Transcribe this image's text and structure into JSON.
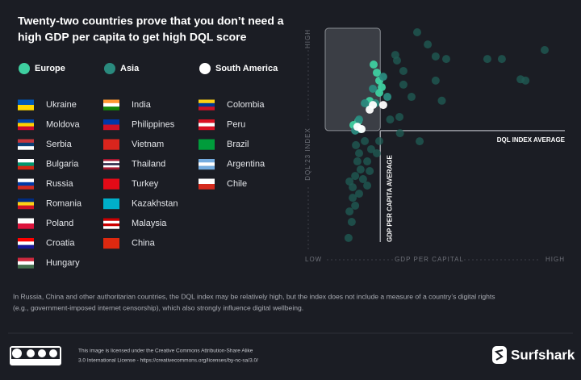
{
  "title": [
    "Twenty-two countries prove that you don’t need a",
    "high GDP per capita to get high DQL score"
  ],
  "chart_data": {
    "type": "scatter",
    "y_label": "DQL'23 INDEX",
    "y_low": "LOW",
    "y_high": "HIGH",
    "x_label": "GDP PER CAPITAL",
    "x_low": "LOW",
    "x_high": "HIGH",
    "x_ref_label": "GDP PER CAPITA AVERAGE",
    "y_ref_label": "DQL INDEX AVERAGE",
    "xlim": [
      0,
      100
    ],
    "ylim": [
      0,
      100
    ],
    "x_ref": 25,
    "y_ref": 54,
    "series": [
      {
        "color": "#1f5a52",
        "x": [
          40,
          31.1,
          31.8,
          44.3,
          47.5,
          51.8,
          68.5,
          74.4,
          91.8,
          82,
          84,
          47.5,
          50,
          34.4,
          37.7,
          32.8,
          41,
          33,
          29,
          34.4,
          12.1,
          13.4,
          14.8,
          16.4,
          13.8,
          18,
          17,
          19.7,
          21.3,
          16.4,
          12.5,
          18.7,
          14.8,
          19.7,
          13.8,
          15.7,
          20.7,
          23.6,
          24.6,
          12.5,
          15.1
        ],
        "y": [
          100,
          89.4,
          86.8,
          94.3,
          88.7,
          87.5,
          87.5,
          87.5,
          91.7,
          78,
          77.4,
          77.4,
          68,
          75.5,
          69.8,
          60.4,
          49,
          52.8,
          59.2,
          81.9,
          3.8,
          11.3,
          18.9,
          24.5,
          27.5,
          31.3,
          35.8,
          39.6,
          45.3,
          43.4,
          16.2,
          49.1,
          32.8,
          28.3,
          22.6,
          39.6,
          35.1,
          43.4,
          49.1,
          30.2,
          47.2
        ]
      },
      {
        "name": "Europe",
        "color": "#3ecfa0",
        "countries": [
          "Ukraine",
          "Moldova",
          "Serbia",
          "Bulgaria",
          "Russia",
          "Romania",
          "Poland",
          "Croatia",
          "Hungary"
        ],
        "x": [
          22.3,
          24.6,
          25.6,
          20.7,
          16.1,
          14.1,
          17,
          24.6,
          23.6
        ],
        "y": [
          84.9,
          77.4,
          74.3,
          67.9,
          58.5,
          56.6,
          54.7,
          71.7,
          81.1
        ]
      },
      {
        "name": "Asia",
        "color": "#2a8a7e",
        "countries": [
          "India",
          "Philippines",
          "Vietnam",
          "Thailand",
          "Turkey",
          "Kazakhstan",
          "Malaysia",
          "China"
        ],
        "x": [
          26.2,
          20.7,
          23,
          14.8,
          16.4,
          27.9,
          18.7,
          22
        ],
        "y": [
          79.2,
          65.3,
          66.8,
          54,
          59.2,
          69.8,
          66.8,
          73.6
        ]
      },
      {
        "name": "South America",
        "color": "#ffffff",
        "countries": [
          "Colombia",
          "Peru",
          "Brazil",
          "Argentina",
          "Chile"
        ],
        "x": [
          22,
          17.4,
          26.2,
          20.7,
          15.7
        ],
        "y": [
          66,
          54.7,
          66,
          63.8,
          55.8
        ]
      }
    ]
  },
  "note": [
    "In Russia, China and other authoritarian countries, the DQL index may be relatively high, but the index does not include a measure of a country’s digital rights",
    "(e.g., government-imposed internet censorship), which also strongly influence digital wellbeing."
  ],
  "license": [
    "This image is licensed under the Creative Commons Attribution-Share Alike",
    "3.0 International License - https://creativecommons.org/licenses/by-nc-sa/3.0/"
  ],
  "brand": "Surfshark"
}
